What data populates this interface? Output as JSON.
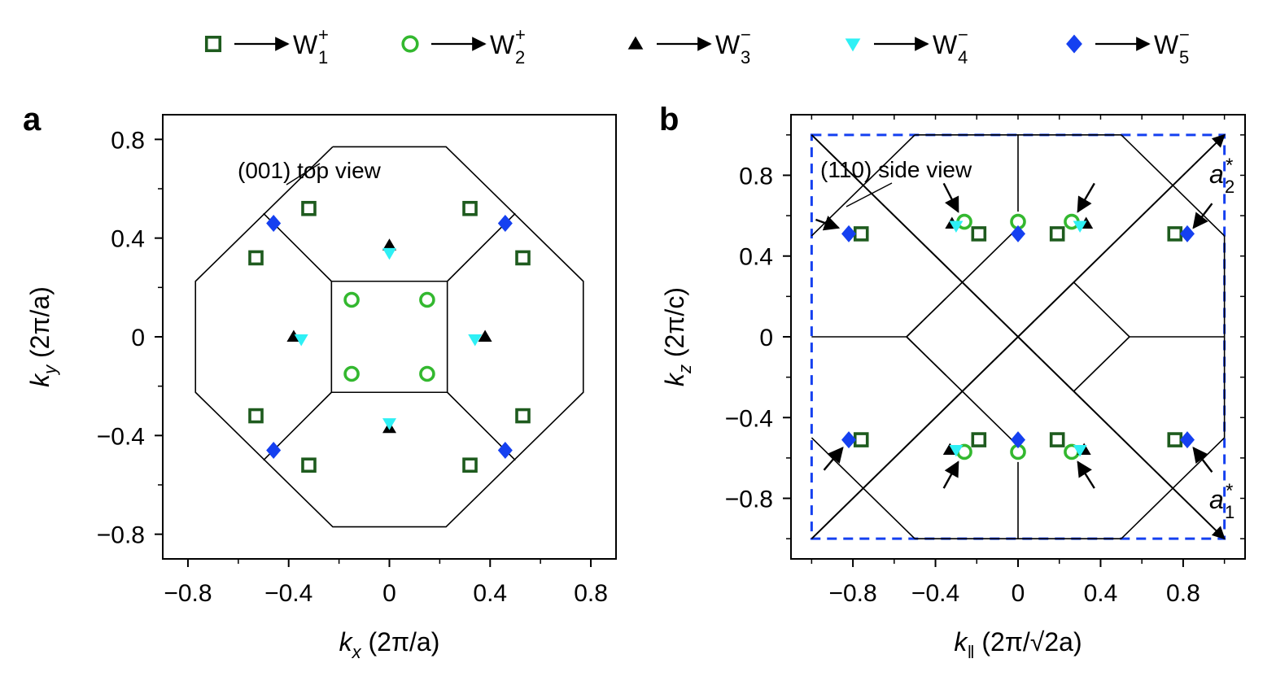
{
  "legend": [
    {
      "name": "W",
      "sub": "1",
      "sup": "+",
      "marker": "square-open",
      "color": "#1e5b1e"
    },
    {
      "name": "W",
      "sub": "2",
      "sup": "+",
      "marker": "circle-open",
      "color": "#33b82f"
    },
    {
      "name": "W",
      "sub": "3",
      "sup": "−",
      "marker": "triangle-up",
      "color": "#000000"
    },
    {
      "name": "W",
      "sub": "4",
      "sup": "−",
      "marker": "triangle-down",
      "color": "#2ef0f5"
    },
    {
      "name": "W",
      "sub": "5",
      "sup": "−",
      "marker": "diamond",
      "color": "#1540f0"
    }
  ],
  "chart_data": [
    {
      "type": "scatter",
      "panel": "a",
      "annotation": "(001) top view",
      "xlabel": {
        "var": "k",
        "sub": "x",
        "unit": "(2π/a)"
      },
      "ylabel": {
        "var": "k",
        "sub": "y",
        "unit": "(2π/a)"
      },
      "xlim": [
        -0.9,
        0.9
      ],
      "ylim": [
        -0.9,
        0.9
      ],
      "xticks": [
        -0.8,
        -0.4,
        0,
        0.4,
        0.8
      ],
      "xticklabels": [
        "−0.8",
        "−0.4",
        "0",
        "0.4",
        "0.8"
      ],
      "yticks": [
        -0.8,
        -0.4,
        0,
        0.4,
        0.8
      ],
      "yticklabels": [
        "−0.8",
        "−0.4",
        "0",
        "0.4",
        "0.8"
      ],
      "minor_ticks": [
        -0.6,
        -0.2,
        0.2,
        0.6
      ],
      "grid": false,
      "bz_lines": [
        [
          [
            -0.225,
            0.77
          ],
          [
            0.225,
            0.77
          ],
          [
            0.77,
            0.225
          ],
          [
            0.77,
            -0.225
          ],
          [
            0.225,
            -0.77
          ],
          [
            -0.225,
            -0.77
          ],
          [
            -0.77,
            -0.225
          ],
          [
            -0.77,
            0.225
          ],
          [
            -0.225,
            0.77
          ]
        ],
        [
          [
            -0.23,
            0.225
          ],
          [
            0.23,
            0.225
          ],
          [
            0.23,
            -0.225
          ],
          [
            -0.23,
            -0.225
          ],
          [
            -0.23,
            0.225
          ]
        ],
        [
          [
            -0.23,
            0.225
          ],
          [
            -0.5,
            0.5
          ]
        ],
        [
          [
            0.23,
            0.225
          ],
          [
            0.5,
            0.5
          ]
        ],
        [
          [
            0.23,
            -0.225
          ],
          [
            0.5,
            -0.5
          ]
        ],
        [
          [
            -0.23,
            -0.225
          ],
          [
            -0.5,
            -0.5
          ]
        ]
      ],
      "series": [
        {
          "name": "W1+",
          "marker": "square-open",
          "points": [
            [
              -0.32,
              0.52
            ],
            [
              0.32,
              0.52
            ],
            [
              -0.53,
              0.32
            ],
            [
              0.53,
              0.32
            ],
            [
              -0.53,
              -0.32
            ],
            [
              0.53,
              -0.32
            ],
            [
              -0.32,
              -0.52
            ],
            [
              0.32,
              -0.52
            ]
          ]
        },
        {
          "name": "W2+",
          "marker": "circle-open",
          "points": [
            [
              -0.15,
              0.15
            ],
            [
              0.15,
              0.15
            ],
            [
              -0.15,
              -0.15
            ],
            [
              0.15,
              -0.15
            ]
          ]
        },
        {
          "name": "W3-",
          "marker": "triangle-up",
          "points": [
            [
              0,
              0.37
            ],
            [
              -0.38,
              0.0
            ],
            [
              0.38,
              0.0
            ],
            [
              0,
              -0.37
            ]
          ]
        },
        {
          "name": "W4-",
          "marker": "triangle-down",
          "points": [
            [
              0,
              0.34
            ],
            [
              -0.35,
              -0.01
            ],
            [
              0.34,
              -0.01
            ],
            [
              0,
              -0.35
            ]
          ]
        },
        {
          "name": "W5-",
          "marker": "diamond",
          "points": [
            [
              -0.46,
              0.46
            ],
            [
              0.46,
              0.46
            ],
            [
              -0.46,
              -0.46
            ],
            [
              0.46,
              -0.46
            ]
          ]
        }
      ]
    },
    {
      "type": "scatter",
      "panel": "b",
      "annotation": "(110) side view",
      "xlabel": {
        "var": "k",
        "sub": "‖",
        "unit": "(2π/√2a)"
      },
      "ylabel": {
        "var": "k",
        "sub": "z",
        "unit": "(2π/c)"
      },
      "xlim": [
        -1.1,
        1.1
      ],
      "ylim": [
        -1.1,
        1.1
      ],
      "xticks": [
        -0.8,
        -0.4,
        0,
        0.4,
        0.8
      ],
      "xticklabels": [
        "−0.8",
        "−0.4",
        "0",
        "0.4",
        "0.8"
      ],
      "yticks": [
        -0.8,
        -0.4,
        0,
        0.4,
        0.8
      ],
      "yticklabels": [
        "−0.8",
        "−0.4",
        "0",
        "0.4",
        "0.8"
      ],
      "minor_ticks": [
        -1.0,
        -0.6,
        -0.2,
        0.2,
        0.6,
        1.0
      ],
      "grid": false,
      "dashed_box": [
        [
          -1.0,
          -1.0
        ],
        [
          1.0,
          1.0
        ]
      ],
      "vectors": [
        {
          "label": "a",
          "sub": "1",
          "sup": "*",
          "from": [
            -1.0,
            1.0
          ],
          "to": [
            1.0,
            -1.0
          ]
        },
        {
          "label": "a",
          "sub": "2",
          "sup": "*",
          "from": [
            -1.0,
            -1.0
          ],
          "to": [
            1.0,
            1.0
          ]
        }
      ],
      "bz_lines": [
        [
          [
            -1.0,
            0.5
          ],
          [
            -0.5,
            1.0
          ]
        ],
        [
          [
            -0.5,
            1.0
          ],
          [
            0.5,
            1.0
          ]
        ],
        [
          [
            0.5,
            1.0
          ],
          [
            1.0,
            0.5
          ]
        ],
        [
          [
            1.0,
            0.5
          ],
          [
            1.0,
            -0.5
          ]
        ],
        [
          [
            1.0,
            -0.5
          ],
          [
            0.5,
            -1.0
          ]
        ],
        [
          [
            0.5,
            -1.0
          ],
          [
            -0.5,
            -1.0
          ]
        ],
        [
          [
            -0.5,
            -1.0
          ],
          [
            -1.0,
            -0.5
          ]
        ],
        [
          [
            -1.0,
            0
          ],
          [
            -0.54,
            0
          ]
        ],
        [
          [
            -0.54,
            0
          ],
          [
            -0.35,
            0.19
          ]
        ],
        [
          [
            -0.54,
            0
          ],
          [
            -0.35,
            -0.19
          ]
        ],
        [
          [
            0,
            1.0
          ],
          [
            0,
            0.62
          ]
        ],
        [
          [
            0,
            -0.62
          ],
          [
            0,
            -1.0
          ]
        ],
        [
          [
            0.54,
            0
          ],
          [
            1.0,
            0
          ]
        ],
        [
          [
            0,
            0
          ],
          [
            0.27,
            0.27
          ]
        ],
        [
          [
            0.27,
            0.27
          ],
          [
            0.54,
            0
          ]
        ],
        [
          [
            0.54,
            0
          ],
          [
            0.27,
            -0.27
          ]
        ],
        [
          [
            0,
            0
          ],
          [
            0.27,
            -0.27
          ]
        ],
        [
          [
            0.27,
            -0.27
          ],
          [
            0.75,
            -0.75
          ]
        ],
        [
          [
            -0.54,
            0
          ],
          [
            -0.27,
            -0.27
          ]
        ],
        [
          [
            -0.27,
            -0.27
          ],
          [
            0,
            -0.54
          ]
        ],
        [
          [
            -0.27,
            0.27
          ],
          [
            0,
            0.54
          ]
        ],
        [
          [
            -0.54,
            0
          ],
          [
            -0.27,
            0.27
          ]
        ]
      ],
      "arrows": [
        [
          [
            -0.98,
            0.58
          ],
          [
            -0.87,
            0.54
          ]
        ],
        [
          [
            -0.36,
            0.76
          ],
          [
            -0.29,
            0.62
          ]
        ],
        [
          [
            0.37,
            0.76
          ],
          [
            0.29,
            0.62
          ]
        ],
        [
          [
            0.94,
            0.66
          ],
          [
            0.85,
            0.54
          ]
        ],
        [
          [
            -0.94,
            -0.66
          ],
          [
            -0.85,
            -0.55
          ]
        ],
        [
          [
            -0.36,
            -0.75
          ],
          [
            -0.29,
            -0.62
          ]
        ],
        [
          [
            0.37,
            -0.75
          ],
          [
            0.29,
            -0.62
          ]
        ],
        [
          [
            0.94,
            -0.67
          ],
          [
            0.85,
            -0.55
          ]
        ]
      ],
      "series": [
        {
          "name": "W1+",
          "marker": "square-open",
          "points": [
            [
              -0.76,
              0.51
            ],
            [
              -0.19,
              0.51
            ],
            [
              0.19,
              0.51
            ],
            [
              0.76,
              0.51
            ],
            [
              -0.76,
              -0.51
            ],
            [
              -0.19,
              -0.51
            ],
            [
              0.19,
              -0.51
            ],
            [
              0.76,
              -0.51
            ]
          ]
        },
        {
          "name": "W2+",
          "marker": "circle-open",
          "points": [
            [
              -0.26,
              0.57
            ],
            [
              0,
              0.57
            ],
            [
              0.26,
              0.57
            ],
            [
              -0.26,
              -0.57
            ],
            [
              0,
              -0.57
            ],
            [
              0.26,
              -0.57
            ]
          ]
        },
        {
          "name": "W3-",
          "marker": "triangle-up",
          "points": [
            [
              -0.32,
              0.56
            ],
            [
              0.33,
              0.56
            ],
            [
              -0.33,
              -0.56
            ],
            [
              0.32,
              -0.56
            ]
          ]
        },
        {
          "name": "W4-",
          "marker": "triangle-down",
          "points": [
            [
              -0.3,
              0.55
            ],
            [
              0.3,
              0.55
            ],
            [
              -0.3,
              -0.56
            ],
            [
              0.3,
              -0.56
            ]
          ]
        },
        {
          "name": "W5-",
          "marker": "diamond",
          "points": [
            [
              -0.82,
              0.51
            ],
            [
              0,
              0.51
            ],
            [
              0.82,
              0.51
            ],
            [
              -0.82,
              -0.51
            ],
            [
              0,
              -0.51
            ],
            [
              0.82,
              -0.51
            ]
          ]
        }
      ]
    }
  ]
}
